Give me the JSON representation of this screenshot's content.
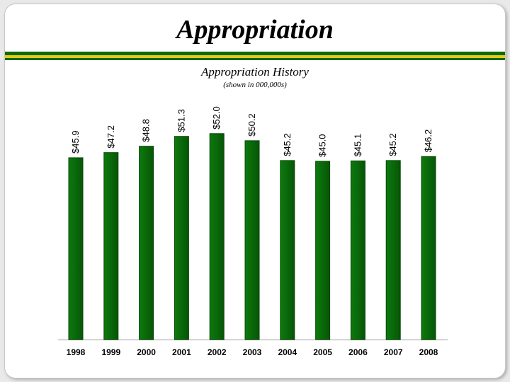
{
  "slide": {
    "title": "Appropriation"
  },
  "colors": {
    "accent_green": "#0b6b0b",
    "accent_yellow": "#e8c81a",
    "bar_fill": "#0a6a0a",
    "bar_edge": "#064806"
  },
  "chart_data": {
    "type": "bar",
    "title": "Appropriation History",
    "subtitle": "(shown in 000,000s)",
    "categories": [
      "1998",
      "1999",
      "2000",
      "2001",
      "2002",
      "2003",
      "2004",
      "2005",
      "2006",
      "2007",
      "2008"
    ],
    "values": [
      45.9,
      47.2,
      48.8,
      51.3,
      52.0,
      50.2,
      45.2,
      45.0,
      45.1,
      45.2,
      46.2
    ],
    "labels": [
      "$45.9",
      "$47.2",
      "$48.8",
      "$51.3",
      "$52.0",
      "$50.2",
      "$45.2",
      "$45.0",
      "$45.1",
      "$45.2",
      "$46.2"
    ],
    "xlabel": "",
    "ylabel": "",
    "grid": false,
    "legend": "none"
  }
}
